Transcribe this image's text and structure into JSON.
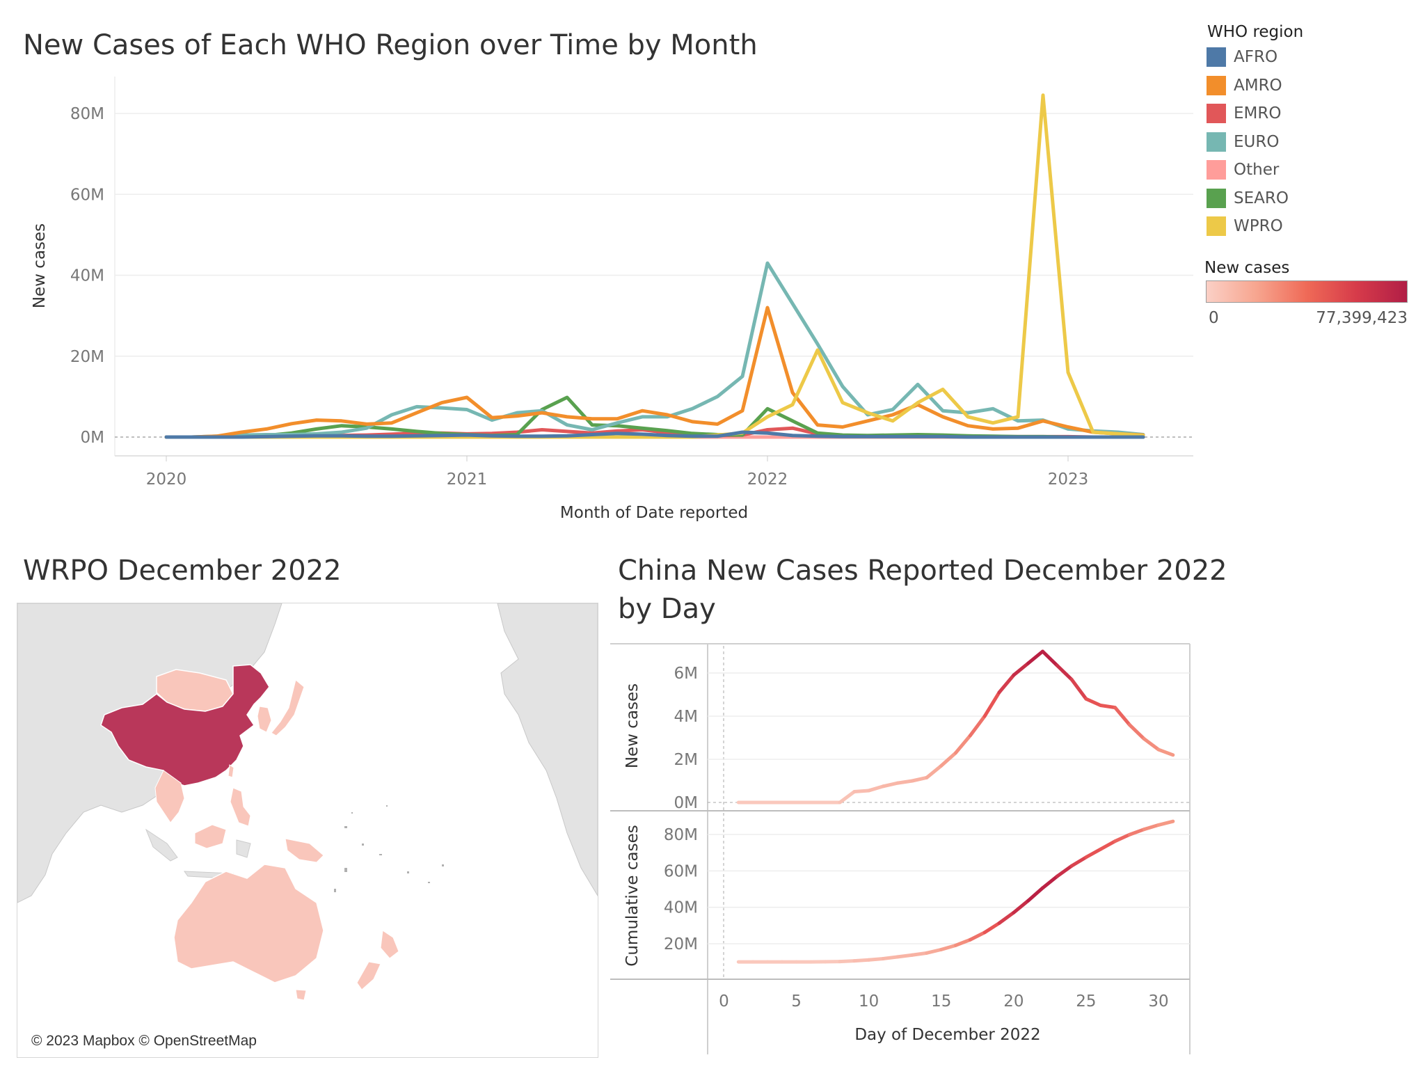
{
  "titles": {
    "main": "New Cases of Each WHO Region over Time by Month",
    "map": "WRPO December 2022",
    "china_line1": "China New Cases Reported December 2022",
    "china_line2": "by Day"
  },
  "legend": {
    "title": "WHO region",
    "items": [
      {
        "label": "AFRO",
        "color": "#4e79a7"
      },
      {
        "label": "AMRO",
        "color": "#f28e2b"
      },
      {
        "label": "EMRO",
        "color": "#e15759"
      },
      {
        "label": "EURO",
        "color": "#76b7b2"
      },
      {
        "label": "Other",
        "color": "#ff9d9a"
      },
      {
        "label": "SEARO",
        "color": "#59a14f"
      },
      {
        "label": "WPRO",
        "color": "#edc948"
      }
    ],
    "color_scale_title": "New cases",
    "color_scale_min": "0",
    "color_scale_max": "77,399,423"
  },
  "map": {
    "attribution": "© 2023 Mapbox © OpenStreetMap",
    "colors": {
      "ocean": "#ffffff",
      "land": "#e3e3e3",
      "high": "#b9375a",
      "low": "#f9c6bb"
    }
  },
  "chart_data": [
    {
      "type": "line",
      "title": "New Cases of Each WHO Region over Time by Month",
      "xlabel": "Month of Date reported",
      "ylabel": "New cases",
      "x": [
        "2020-01",
        "2020-02",
        "2020-03",
        "2020-04",
        "2020-05",
        "2020-06",
        "2020-07",
        "2020-08",
        "2020-09",
        "2020-10",
        "2020-11",
        "2020-12",
        "2021-01",
        "2021-02",
        "2021-03",
        "2021-04",
        "2021-05",
        "2021-06",
        "2021-07",
        "2021-08",
        "2021-09",
        "2021-10",
        "2021-11",
        "2021-12",
        "2022-01",
        "2022-02",
        "2022-03",
        "2022-04",
        "2022-05",
        "2022-06",
        "2022-07",
        "2022-08",
        "2022-09",
        "2022-10",
        "2022-11",
        "2022-12",
        "2023-01",
        "2023-02",
        "2023-03",
        "2023-04"
      ],
      "x_ticks": [
        "2020",
        "2021",
        "2022",
        "2023"
      ],
      "y_ticks": [
        "0M",
        "20M",
        "40M",
        "60M",
        "80M"
      ],
      "ylim": [
        0,
        90
      ],
      "y_unit": "M",
      "series": [
        {
          "name": "AFRO",
          "color": "#4e79a7",
          "values": [
            0,
            0,
            0,
            0,
            0.1,
            0.2,
            0.3,
            0.3,
            0.2,
            0.2,
            0.3,
            0.4,
            0.5,
            0.3,
            0.2,
            0.2,
            0.3,
            0.6,
            0.9,
            0.7,
            0.4,
            0.2,
            0.2,
            1.2,
            1.0,
            0.4,
            0.2,
            0.1,
            0.1,
            0.1,
            0.1,
            0.1,
            0,
            0,
            0,
            0,
            0,
            0,
            0,
            0
          ]
        },
        {
          "name": "AMRO",
          "color": "#f28e2b",
          "values": [
            0,
            0,
            0.2,
            1.2,
            2.0,
            3.3,
            4.2,
            4.0,
            3.2,
            3.5,
            6.0,
            8.5,
            9.8,
            4.8,
            5.2,
            6.0,
            5.0,
            4.5,
            4.5,
            6.5,
            5.5,
            3.8,
            3.2,
            6.5,
            32.0,
            11.0,
            3.0,
            2.5,
            4.0,
            5.5,
            8.0,
            5.0,
            2.8,
            2.0,
            2.2,
            4.0,
            2.5,
            1.2,
            0.8,
            0.5
          ]
        },
        {
          "name": "EMRO",
          "color": "#e15759",
          "values": [
            0,
            0,
            0,
            0.3,
            0.4,
            0.6,
            0.5,
            0.4,
            0.5,
            0.7,
            1.0,
            1.0,
            0.8,
            0.9,
            1.2,
            1.8,
            1.4,
            1.0,
            1.5,
            1.8,
            1.1,
            0.6,
            0.4,
            0.5,
            1.8,
            2.2,
            0.8,
            0.4,
            0.2,
            0.3,
            0.5,
            0.4,
            0.2,
            0.1,
            0.1,
            0.1,
            0.1,
            0,
            0,
            0
          ]
        },
        {
          "name": "EURO",
          "color": "#76b7b2",
          "values": [
            0,
            0,
            0.2,
            0.5,
            0.6,
            0.6,
            0.8,
            1.2,
            2.2,
            5.5,
            7.5,
            7.2,
            6.8,
            4.2,
            6.0,
            6.5,
            3.0,
            1.8,
            3.5,
            5.0,
            5.0,
            7.0,
            10.0,
            15.0,
            43.0,
            33.0,
            23.0,
            12.5,
            5.5,
            6.8,
            13.0,
            6.5,
            6.0,
            7.0,
            4.0,
            4.2,
            2.0,
            1.5,
            1.2,
            0.6
          ]
        },
        {
          "name": "Other",
          "color": "#ff9d9a",
          "values": [
            0,
            0,
            0,
            0,
            0,
            0,
            0,
            0,
            0,
            0,
            0,
            0,
            0,
            0,
            0,
            0,
            0,
            0,
            0,
            0,
            0,
            0,
            0,
            0,
            0,
            0,
            0,
            0,
            0,
            0,
            0,
            0,
            0,
            0,
            0,
            0,
            0,
            0,
            0,
            0
          ]
        },
        {
          "name": "SEARO",
          "color": "#59a14f",
          "values": [
            0,
            0,
            0,
            0.1,
            0.4,
            1.0,
            2.0,
            2.8,
            2.5,
            2.0,
            1.4,
            0.9,
            0.6,
            0.4,
            0.6,
            6.8,
            9.8,
            3.0,
            2.8,
            2.2,
            1.6,
            0.9,
            0.6,
            0.5,
            7.0,
            4.0,
            1.0,
            0.5,
            0.4,
            0.5,
            0.6,
            0.5,
            0.3,
            0.2,
            0.1,
            0.1,
            0,
            0,
            0,
            0
          ]
        },
        {
          "name": "WPRO",
          "color": "#edc948",
          "values": [
            0,
            0,
            0,
            0,
            0,
            0,
            0,
            0,
            0,
            0,
            0,
            0,
            0,
            0,
            0,
            0,
            0,
            0,
            0,
            0,
            0,
            0,
            0.5,
            1.0,
            5.0,
            8.0,
            21.5,
            8.5,
            6.0,
            4.0,
            8.5,
            11.8,
            5.0,
            3.5,
            5.0,
            84.5,
            16.0,
            1.2,
            0.8,
            0.4
          ]
        }
      ]
    },
    {
      "type": "line",
      "title": "China New Cases Reported December 2022 by Day",
      "xlabel": "Day of December 2022",
      "x_ticks": [
        "0",
        "5",
        "10",
        "15",
        "20",
        "25",
        "30"
      ],
      "panels": [
        {
          "ylabel": "New cases",
          "y_ticks": [
            "0M",
            "2M",
            "4M",
            "6M"
          ],
          "ylim": [
            -0.2,
            7.4
          ],
          "y_unit": "M",
          "x": [
            1,
            2,
            3,
            4,
            5,
            6,
            7,
            8,
            9,
            10,
            11,
            12,
            13,
            14,
            15,
            16,
            17,
            18,
            19,
            20,
            21,
            22,
            23,
            24,
            25,
            26,
            27,
            28,
            29,
            30,
            31
          ],
          "values": [
            0,
            0,
            0,
            0,
            0,
            0,
            0,
            0,
            0.5,
            0.55,
            0.75,
            0.9,
            1.0,
            1.15,
            1.7,
            2.3,
            3.1,
            4.0,
            5.1,
            5.9,
            6.45,
            7.0,
            6.35,
            5.7,
            4.8,
            4.5,
            4.4,
            3.6,
            2.95,
            2.45,
            2.2
          ]
        },
        {
          "ylabel": "Cumulative cases",
          "y_ticks": [
            "20M",
            "40M",
            "60M",
            "80M"
          ],
          "ylim": [
            0,
            93
          ],
          "y_unit": "M",
          "x": [
            1,
            2,
            3,
            4,
            5,
            6,
            7,
            8,
            9,
            10,
            11,
            12,
            13,
            14,
            15,
            16,
            17,
            18,
            19,
            20,
            21,
            22,
            23,
            24,
            25,
            26,
            27,
            28,
            29,
            30,
            31
          ],
          "values": [
            10.0,
            10.0,
            10.0,
            10.0,
            10.0,
            10.0,
            10.1,
            10.2,
            10.6,
            11.1,
            11.8,
            12.8,
            13.8,
            14.9,
            16.8,
            19.1,
            22.2,
            26.2,
            31.3,
            37.1,
            43.6,
            50.6,
            57.0,
            62.7,
            67.5,
            71.9,
            76.3,
            79.9,
            82.8,
            85.2,
            87.2
          ]
        }
      ]
    }
  ]
}
